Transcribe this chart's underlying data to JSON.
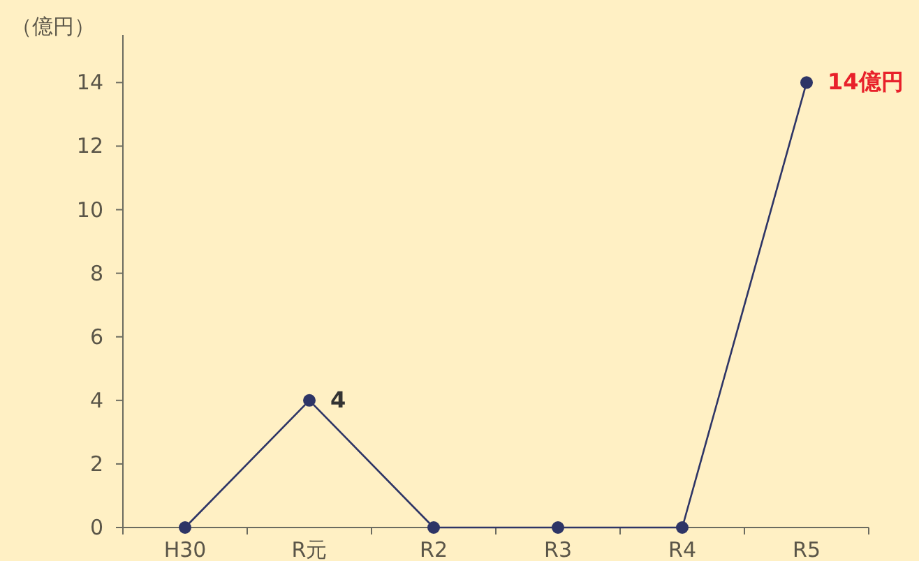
{
  "chart_data": {
    "type": "line",
    "ylabel": "（億円）",
    "categories": [
      "H30",
      "R元",
      "R2",
      "R3",
      "R4",
      "R5"
    ],
    "series": [
      {
        "color": "#2e3566",
        "values": [
          0,
          4,
          0,
          0,
          0,
          14
        ],
        "value_labels": [
          null,
          "4",
          null,
          null,
          null,
          "14億円"
        ]
      }
    ],
    "ylim": [
      0,
      15.5
    ],
    "yticks": [
      0,
      2,
      4,
      6,
      8,
      10,
      12,
      14
    ],
    "marker": "circle",
    "grid": false
  }
}
